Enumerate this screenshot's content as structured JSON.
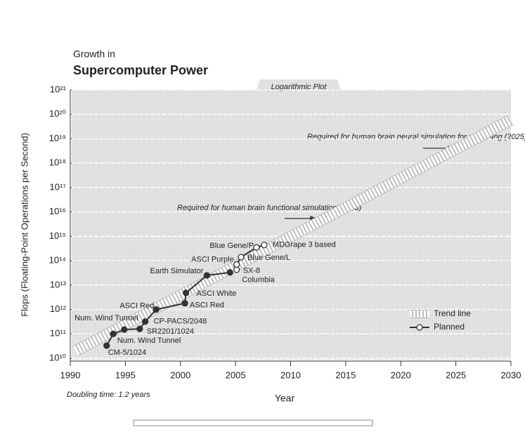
{
  "chart_data": {
    "type": "line",
    "title": "Growth in",
    "subtitle": "Supercomputer Power",
    "plot_label": "Logarithmic Plot",
    "x_label": "Year",
    "y_label": "Flops (Floating-Point Operations per Second)",
    "note": "Doubling time: 1.2 years",
    "log_y": true,
    "grid": true,
    "legend": "lower right",
    "xlim": [
      1990,
      2030
    ],
    "xticks": [
      1990,
      1995,
      2000,
      2005,
      2010,
      2015,
      2020,
      2025,
      2030
    ],
    "ylim": [
      10000000000.0,
      1e+21
    ],
    "yticks": [
      {
        "value": 10000000000.0,
        "label": "10¹⁰"
      },
      {
        "value": 100000000000.0,
        "label": "10¹¹"
      },
      {
        "value": 1000000000000.0,
        "label": "10¹²"
      },
      {
        "value": 10000000000000.0,
        "label": "10¹³"
      },
      {
        "value": 100000000000000.0,
        "label": "10¹⁴"
      },
      {
        "value": 1000000000000000.0,
        "label": "10¹⁵"
      },
      {
        "value": 1e+16,
        "label": "10¹⁶"
      },
      {
        "value": 1e+17,
        "label": "10¹⁷"
      },
      {
        "value": 1e+18,
        "label": "10¹⁸"
      },
      {
        "value": 1e+19,
        "label": "10¹⁹"
      },
      {
        "value": 1e+20,
        "label": "10²⁰"
      },
      {
        "value": 1e+21,
        "label": "10²¹"
      }
    ],
    "trend": {
      "name": "Trend line",
      "color": "#ffffff",
      "x": [
        1990.5,
        2030
      ],
      "y": [
        20000000000.0,
        6e+19
      ]
    },
    "series": [
      {
        "color": "#333333",
        "labels": [
          "CM-5/1024",
          "Num. Wind Tunnel",
          "Num. Wind Tunnel",
          "SR2201/1024",
          "CP-PACS/2048",
          "ASCI Red",
          "ASCI Red",
          "ASCI White",
          "Earth Simulator",
          "Columbia"
        ],
        "x": [
          1993.3,
          1993.9,
          1994.9,
          1996.3,
          1996.8,
          1997.8,
          2000.4,
          2000.5,
          2002.4,
          2004.5
        ],
        "values": [
          33000000000.0,
          100000000000.0,
          150000000000.0,
          160000000000.0,
          320000000000.0,
          1000000000000.0,
          1800000000000.0,
          4800000000000.0,
          25000000000000.0,
          33000000000000.0
        ]
      },
      {
        "name": "Planned",
        "color": "#333333",
        "labels": [
          "SX-8",
          "ASCI Purple",
          "Blue Gene/L",
          "Blue Gene/P",
          "MDGrape 3 based"
        ],
        "x": [
          2005.1,
          2005.1,
          2005.5,
          2006.9,
          2007.6
        ],
        "values": [
          43000000000000.0,
          70000000000000.0,
          140000000000000.0,
          350000000000000.0,
          440000000000000.0
        ]
      }
    ],
    "annotations": [
      "Required for human brain functional simulation (2013)",
      "Required for human brain neural simulation for uploading (2025)"
    ]
  }
}
